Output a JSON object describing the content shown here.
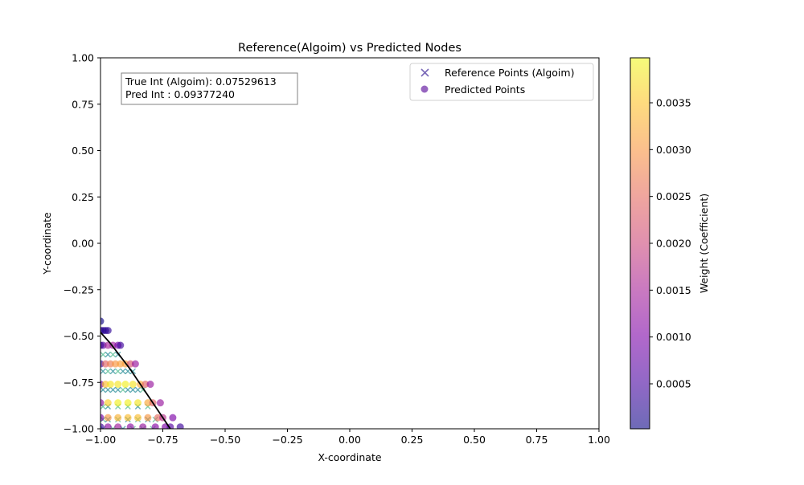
{
  "chart_data": {
    "type": "scatter",
    "title": "Reference(Algoim) vs Predicted Nodes",
    "xlabel": "X-coordinate",
    "ylabel": "Y-coordinate",
    "xlim": [
      -1.0,
      1.0
    ],
    "ylim": [
      -1.0,
      1.0
    ],
    "x_ticks": [
      "−1.00",
      "−0.75",
      "−0.50",
      "−0.25",
      "0.00",
      "0.25",
      "0.50",
      "0.75",
      "1.00"
    ],
    "x_tick_values": [
      -1.0,
      -0.75,
      -0.5,
      -0.25,
      0.0,
      0.25,
      0.5,
      0.75,
      1.0
    ],
    "y_ticks": [
      "−1.00",
      "−0.75",
      "−0.50",
      "−0.25",
      "0.00",
      "0.25",
      "0.50",
      "0.75",
      "1.00"
    ],
    "y_tick_values": [
      -1.0,
      -0.75,
      -0.5,
      -0.25,
      0.0,
      0.25,
      0.5,
      0.75,
      1.0
    ],
    "grid": false,
    "legend": {
      "placement": "upper-right",
      "entries": [
        "Reference Points (Algoim)",
        "Predicted Points"
      ]
    },
    "annotation": {
      "line1": "True Int (Algoim): 0.07529613",
      "line2": "Pred Int : 0.09377240"
    },
    "colorbar": {
      "label": "Weight (Coefficient)",
      "colormap": "plasma",
      "range": [
        2e-05,
        0.00398
      ],
      "ticks": [
        "0.0005",
        "0.0010",
        "0.0015",
        "0.0020",
        "0.0025",
        "0.0030",
        "0.0035"
      ],
      "tick_values": [
        0.0005,
        0.001,
        0.0015,
        0.002,
        0.0025,
        0.003,
        0.0035
      ]
    },
    "boundary_curve": {
      "x": [
        -1.0,
        -0.96,
        -0.92,
        -0.88,
        -0.84,
        -0.8,
        -0.76,
        -0.72
      ],
      "y": [
        -0.48,
        -0.54,
        -0.61,
        -0.68,
        -0.76,
        -0.84,
        -0.92,
        -1.0
      ]
    },
    "series": [
      {
        "name": "Reference Points (Algoim)",
        "marker": "x",
        "points": [
          [
            -0.99,
            -0.6,
            0.0012
          ],
          [
            -0.97,
            -0.6,
            0.0006
          ],
          [
            -0.95,
            -0.6,
            0.0009
          ],
          [
            -0.93,
            -0.6,
            0.0004
          ],
          [
            -0.99,
            -0.69,
            0.0006
          ],
          [
            -0.97,
            -0.69,
            0.001
          ],
          [
            -0.95,
            -0.69,
            0.0008
          ],
          [
            -0.93,
            -0.69,
            0.0009
          ],
          [
            -0.91,
            -0.69,
            0.0007
          ],
          [
            -0.89,
            -0.69,
            0.0005
          ],
          [
            -0.87,
            -0.69,
            0.0007
          ],
          [
            -0.99,
            -0.79,
            0.0008
          ],
          [
            -0.97,
            -0.79,
            0.0008
          ],
          [
            -0.95,
            -0.79,
            0.0008
          ],
          [
            -0.93,
            -0.79,
            0.0008
          ],
          [
            -0.91,
            -0.79,
            0.0009
          ],
          [
            -0.89,
            -0.79,
            0.0008
          ],
          [
            -0.87,
            -0.79,
            0.0006
          ],
          [
            -0.85,
            -0.79,
            0.0006
          ],
          [
            -0.83,
            -0.79,
            0.0009
          ],
          [
            -0.99,
            -0.88,
            0.0009
          ],
          [
            -0.97,
            -0.88,
            0.0007
          ],
          [
            -0.93,
            -0.88,
            0.0009
          ],
          [
            -0.89,
            -0.88,
            0.0009
          ],
          [
            -0.85,
            -0.88,
            0.0007
          ],
          [
            -0.81,
            -0.88,
            0.0009
          ],
          [
            -0.99,
            -0.95,
            0.0009
          ],
          [
            -0.97,
            -0.95,
            0.0008
          ],
          [
            -0.93,
            -0.95,
            0.001
          ],
          [
            -0.89,
            -0.95,
            0.0008
          ],
          [
            -0.85,
            -0.95,
            0.0009
          ],
          [
            -0.81,
            -0.95,
            0.0008
          ],
          [
            -0.78,
            -0.95,
            0.001
          ],
          [
            -0.99,
            -1.0,
            0.0008
          ],
          [
            -0.95,
            -1.0,
            0.0009
          ],
          [
            -0.91,
            -1.0,
            0.0008
          ],
          [
            -0.87,
            -1.0,
            0.0009
          ],
          [
            -0.83,
            -1.0,
            0.0009
          ],
          [
            -0.79,
            -1.0,
            0.001
          ]
        ]
      },
      {
        "name": "Predicted Points",
        "marker": "o",
        "points": [
          [
            -1.0,
            -0.42,
            5e-05
          ],
          [
            -1.0,
            -0.47,
            0.0002
          ],
          [
            -0.99,
            -0.47,
            0.0003
          ],
          [
            -0.98,
            -0.47,
            0.0002
          ],
          [
            -0.97,
            -0.47,
            0.0003
          ],
          [
            -1.0,
            -0.55,
            0.0001
          ],
          [
            -0.99,
            -0.55,
            0.0006
          ],
          [
            -0.97,
            -0.55,
            0.0015
          ],
          [
            -0.95,
            -0.55,
            0.0014
          ],
          [
            -0.93,
            -0.55,
            0.001
          ],
          [
            -0.92,
            -0.55,
            0.0004
          ],
          [
            -1.0,
            -0.65,
            0.0004
          ],
          [
            -0.98,
            -0.65,
            0.0024
          ],
          [
            -0.96,
            -0.65,
            0.0027
          ],
          [
            -0.94,
            -0.65,
            0.003
          ],
          [
            -0.92,
            -0.65,
            0.0031
          ],
          [
            -0.9,
            -0.65,
            0.0031
          ],
          [
            -0.88,
            -0.65,
            0.0022
          ],
          [
            -0.86,
            -0.65,
            0.0013
          ],
          [
            -1.0,
            -0.76,
            0.0009
          ],
          [
            -0.98,
            -0.76,
            0.0034
          ],
          [
            -0.96,
            -0.76,
            0.0038
          ],
          [
            -0.93,
            -0.76,
            0.0038
          ],
          [
            -0.9,
            -0.76,
            0.0039
          ],
          [
            -0.87,
            -0.76,
            0.0038
          ],
          [
            -0.84,
            -0.76,
            0.0032
          ],
          [
            -0.82,
            -0.76,
            0.0024
          ],
          [
            -0.8,
            -0.76,
            0.0013
          ],
          [
            -1.0,
            -0.86,
            0.0012
          ],
          [
            -0.97,
            -0.86,
            0.0036
          ],
          [
            -0.93,
            -0.86,
            0.0039
          ],
          [
            -0.89,
            -0.86,
            0.0039
          ],
          [
            -0.85,
            -0.86,
            0.0038
          ],
          [
            -0.81,
            -0.86,
            0.0032
          ],
          [
            -0.79,
            -0.86,
            0.0024
          ],
          [
            -0.76,
            -0.86,
            0.0013
          ],
          [
            -1.0,
            -0.94,
            0.001
          ],
          [
            -0.97,
            -0.94,
            0.003
          ],
          [
            -0.93,
            -0.94,
            0.0033
          ],
          [
            -0.89,
            -0.94,
            0.0034
          ],
          [
            -0.85,
            -0.94,
            0.0034
          ],
          [
            -0.81,
            -0.94,
            0.003
          ],
          [
            -0.77,
            -0.94,
            0.0025
          ],
          [
            -0.75,
            -0.94,
            0.0017
          ],
          [
            -0.71,
            -0.94,
            0.001
          ],
          [
            -1.0,
            -0.99,
            0.0004
          ],
          [
            -0.97,
            -0.99,
            0.0012
          ],
          [
            -0.93,
            -0.99,
            0.0014
          ],
          [
            -0.88,
            -0.99,
            0.0012
          ],
          [
            -0.83,
            -0.99,
            0.0013
          ],
          [
            -0.78,
            -0.99,
            0.0011
          ],
          [
            -0.74,
            -0.99,
            0.001
          ],
          [
            -0.72,
            -0.99,
            0.0006
          ],
          [
            -0.68,
            -0.99,
            0.0004
          ]
        ]
      }
    ]
  }
}
